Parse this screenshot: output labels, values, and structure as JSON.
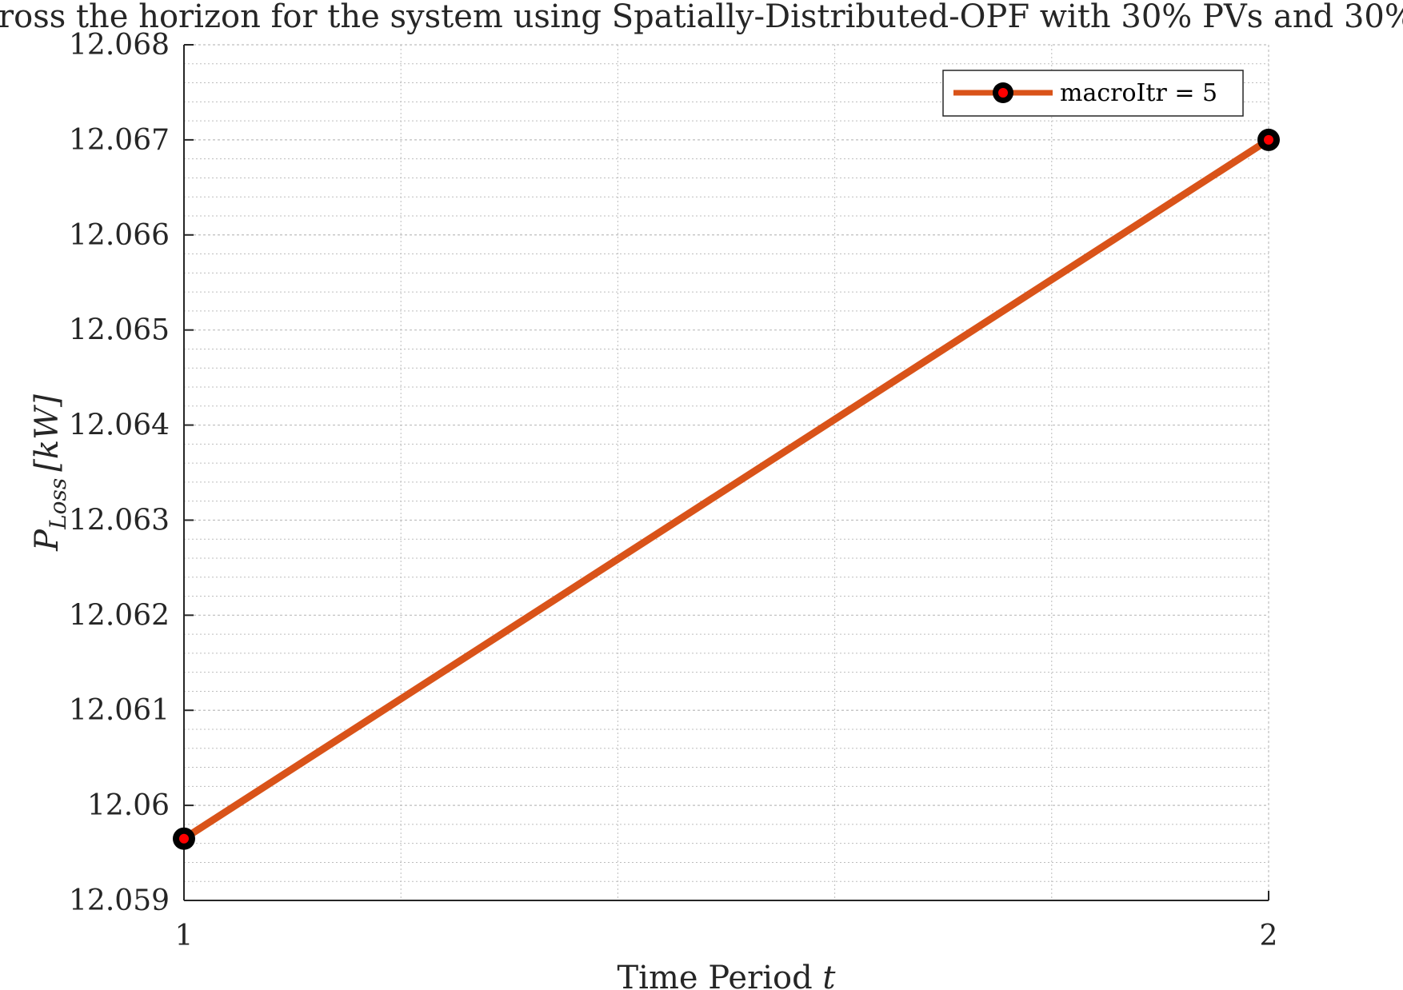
{
  "chart_data": {
    "type": "line",
    "title": "ross the horizon for the system using Spatially-Distributed-OPF with 30% PVs and 30%",
    "xlabel": "Time Period",
    "xlabel_var": "t",
    "ylabel_main": "P",
    "ylabel_sub": "Loss",
    "ylabel_unit": "[kW]",
    "xlim": [
      1,
      2
    ],
    "ylim": [
      12.059,
      12.068
    ],
    "x_ticks": [
      "1",
      "2"
    ],
    "y_ticks": [
      "12.059",
      "12.06",
      "12.061",
      "12.062",
      "12.063",
      "12.064",
      "12.065",
      "12.066",
      "12.067",
      "12.068"
    ],
    "grid": "on (major and minor)",
    "legend_position": "top-right",
    "series": [
      {
        "name": "macroItr = 5",
        "color": "#D95319",
        "marker_edge": "#000000",
        "marker_face": "#FF0000",
        "x": [
          1,
          2
        ],
        "y": [
          12.05965,
          12.067
        ]
      }
    ]
  }
}
